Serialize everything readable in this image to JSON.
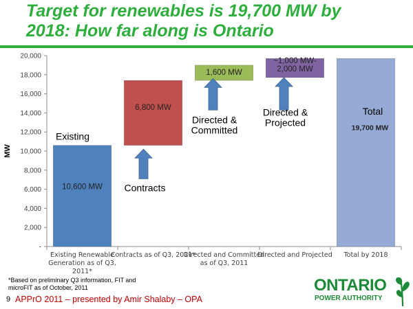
{
  "slide": {
    "title_line1": "Target for renewables is 19,700 MW by",
    "title_line2": "2018: How far along is Ontario",
    "footnote_line1": "*Based on preliminary Q3 information, FIT and",
    "footnote_line2": "microFIT as of October, 2011",
    "page_number": "9",
    "presenter": "APPrO 2011 – presented by Amir Shalaby – OPA",
    "logo_word": "ONTARIO",
    "logo_sub": "POWER AUTHORITY",
    "logo_icon": "ontario-power-authority-logo"
  },
  "chart_data": {
    "type": "bar",
    "subtype": "waterfall",
    "ylabel": "MW",
    "ylim": [
      0,
      20000
    ],
    "yticks": [
      "-",
      "2,000",
      "4,000",
      "6,000",
      "8,000",
      "10,000",
      "12,000",
      "14,000",
      "16,000",
      "18,000",
      "20,000"
    ],
    "grid": false,
    "categories": [
      [
        "Existing Renewable",
        "Generation as of Q3,",
        "2011*"
      ],
      [
        "Contracts as of Q3, 2011*"
      ],
      [
        "Directed and Committed",
        "as of Q3, 2011"
      ],
      [
        "Directed and Projected"
      ],
      [
        "Total by 2018"
      ]
    ],
    "bars": [
      {
        "base": 0,
        "value": 10600,
        "color": "#4f81bd",
        "label": [
          "10,600 MW"
        ]
      },
      {
        "base": 10600,
        "value": 6800,
        "color": "#c0504d",
        "label": [
          "6,800 MW"
        ]
      },
      {
        "base": 17400,
        "value": 1600,
        "color": "#9bbb59",
        "label": [
          "1,600 MW"
        ]
      },
      {
        "base": 17700,
        "value": 2000,
        "color": "#8064a2",
        "label": [
          "~1,000 MW-",
          "2,000 MW"
        ]
      },
      {
        "base": 0,
        "value": 19700,
        "color": "#95abd6",
        "label": [
          "19,700 MW"
        ]
      }
    ],
    "annotations": [
      "Existing",
      "Contracts",
      "Directed & Committed",
      "Directed & Projected",
      "Total"
    ],
    "annotation_lines": [
      [
        "Existing"
      ],
      [
        "Contracts"
      ],
      [
        "Directed &",
        "Committed"
      ],
      [
        "Directed &",
        "Projected"
      ],
      [
        "Total"
      ]
    ],
    "arrow_color": "#4f81bd"
  }
}
